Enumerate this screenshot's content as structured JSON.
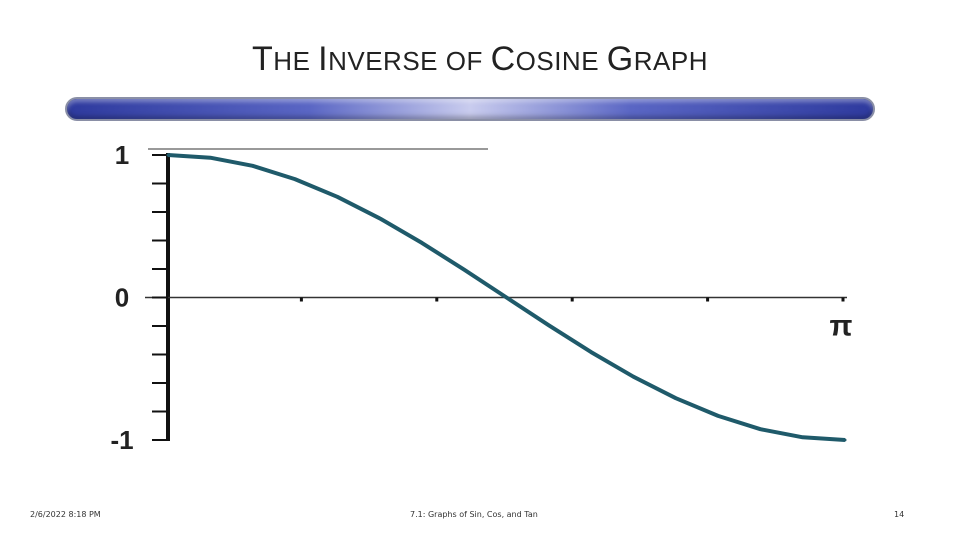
{
  "slide": {
    "title_parts": [
      {
        "text": "T",
        "cls": "cap"
      },
      {
        "text": "HE ",
        "cls": "sc"
      },
      {
        "text": "I",
        "cls": "cap"
      },
      {
        "text": "NVERSE OF ",
        "cls": "sc"
      },
      {
        "text": "C",
        "cls": "cap"
      },
      {
        "text": "OSINE ",
        "cls": "sc"
      },
      {
        "text": "G",
        "cls": "cap"
      },
      {
        "text": "RAPH",
        "cls": "sc"
      }
    ],
    "title": "THE INVERSE OF COSINE GRAPH",
    "accent_color": "#2e3a9e"
  },
  "footer": {
    "date": "2/6/2022 8:18 PM",
    "center": "7.1: Graphs of Sin, Cos, and Tan",
    "page": "14"
  },
  "chart_data": {
    "type": "line",
    "title": "",
    "xlabel": "",
    "ylabel": "",
    "xlim": [
      0,
      3.1416
    ],
    "ylim": [
      -1,
      1
    ],
    "y_tick_labels": [
      "1",
      "0",
      "-1"
    ],
    "y_tick_values": [
      1,
      0,
      -1
    ],
    "x_tick_labels": [
      "π"
    ],
    "x_tick_values": [
      3.1416
    ],
    "line_color": "#1f5a6a",
    "series": [
      {
        "x": [
          0,
          0.1963,
          0.3927,
          0.589,
          0.7854,
          0.9817,
          1.1781,
          1.3744,
          1.5708,
          1.7671,
          1.9635,
          2.1598,
          2.3562,
          2.5525,
          2.7489,
          2.9452,
          3.1416
        ],
        "y": [
          1,
          0.981,
          0.924,
          0.831,
          0.707,
          0.556,
          0.383,
          0.195,
          0,
          -0.195,
          -0.383,
          -0.556,
          -0.707,
          -0.831,
          -0.924,
          -0.981,
          -1
        ]
      }
    ]
  }
}
